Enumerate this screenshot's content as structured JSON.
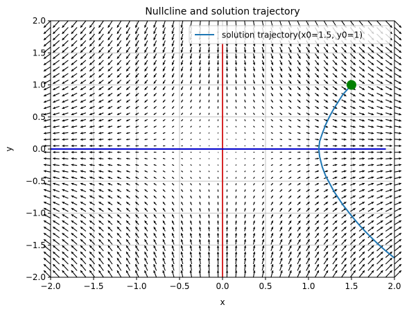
{
  "chart_data": {
    "type": "line",
    "title": "Nullcline and solution trajectory",
    "xlabel": "x",
    "ylabel": "y",
    "xlim": [
      -2,
      2
    ],
    "ylim": [
      -2,
      2
    ],
    "grid": true,
    "legend_position": "top-right",
    "x_ticks": [
      -2.0,
      -1.5,
      -1.0,
      -0.5,
      0.0,
      0.5,
      1.0,
      1.5,
      2.0
    ],
    "y_ticks": [
      -2.0,
      -1.5,
      -1.0,
      -0.5,
      0.0,
      0.5,
      1.0,
      1.5,
      2.0
    ],
    "x_tick_labels": [
      "−2.0",
      "−1.5",
      "−1.0",
      "−0.5",
      "0.0",
      "0.5",
      "1.0",
      "1.5",
      "2.0"
    ],
    "y_tick_labels": [
      "−2.0",
      "−1.5",
      "−1.0",
      "−0.5",
      "0.0",
      "0.5",
      "1.0",
      "1.5",
      "2.0"
    ],
    "vector_field": {
      "dx": "x",
      "dy": "-y",
      "grid_min": -2,
      "grid_max": 2,
      "grid_count": 40,
      "color": "#000000"
    },
    "nullclines": [
      {
        "orientation": "vertical",
        "x": 0,
        "y_range": [
          -2,
          1.65
        ],
        "color": "#d62728"
      },
      {
        "orientation": "horizontal",
        "y": 0,
        "x_range": [
          -2,
          1.9
        ],
        "color": "#0000cc"
      }
    ],
    "series": [
      {
        "name": "solution trajectory(x0=1.5, y0=1)",
        "color": "#1f77b4",
        "x": [
          1.5,
          1.4,
          1.3,
          1.25,
          1.2,
          1.16,
          1.13,
          1.12,
          1.13,
          1.16,
          1.2,
          1.3,
          1.4,
          1.5,
          1.6,
          1.7,
          1.8,
          1.9,
          2.0
        ],
        "y": [
          1.0,
          0.85,
          0.64,
          0.52,
          0.38,
          0.24,
          0.12,
          0.0,
          -0.12,
          -0.28,
          -0.42,
          -0.67,
          -0.87,
          -1.04,
          -1.2,
          -1.34,
          -1.47,
          -1.59,
          -1.7
        ]
      }
    ],
    "initial_point": {
      "x": 1.5,
      "y": 1.0,
      "color": "#008000"
    }
  }
}
